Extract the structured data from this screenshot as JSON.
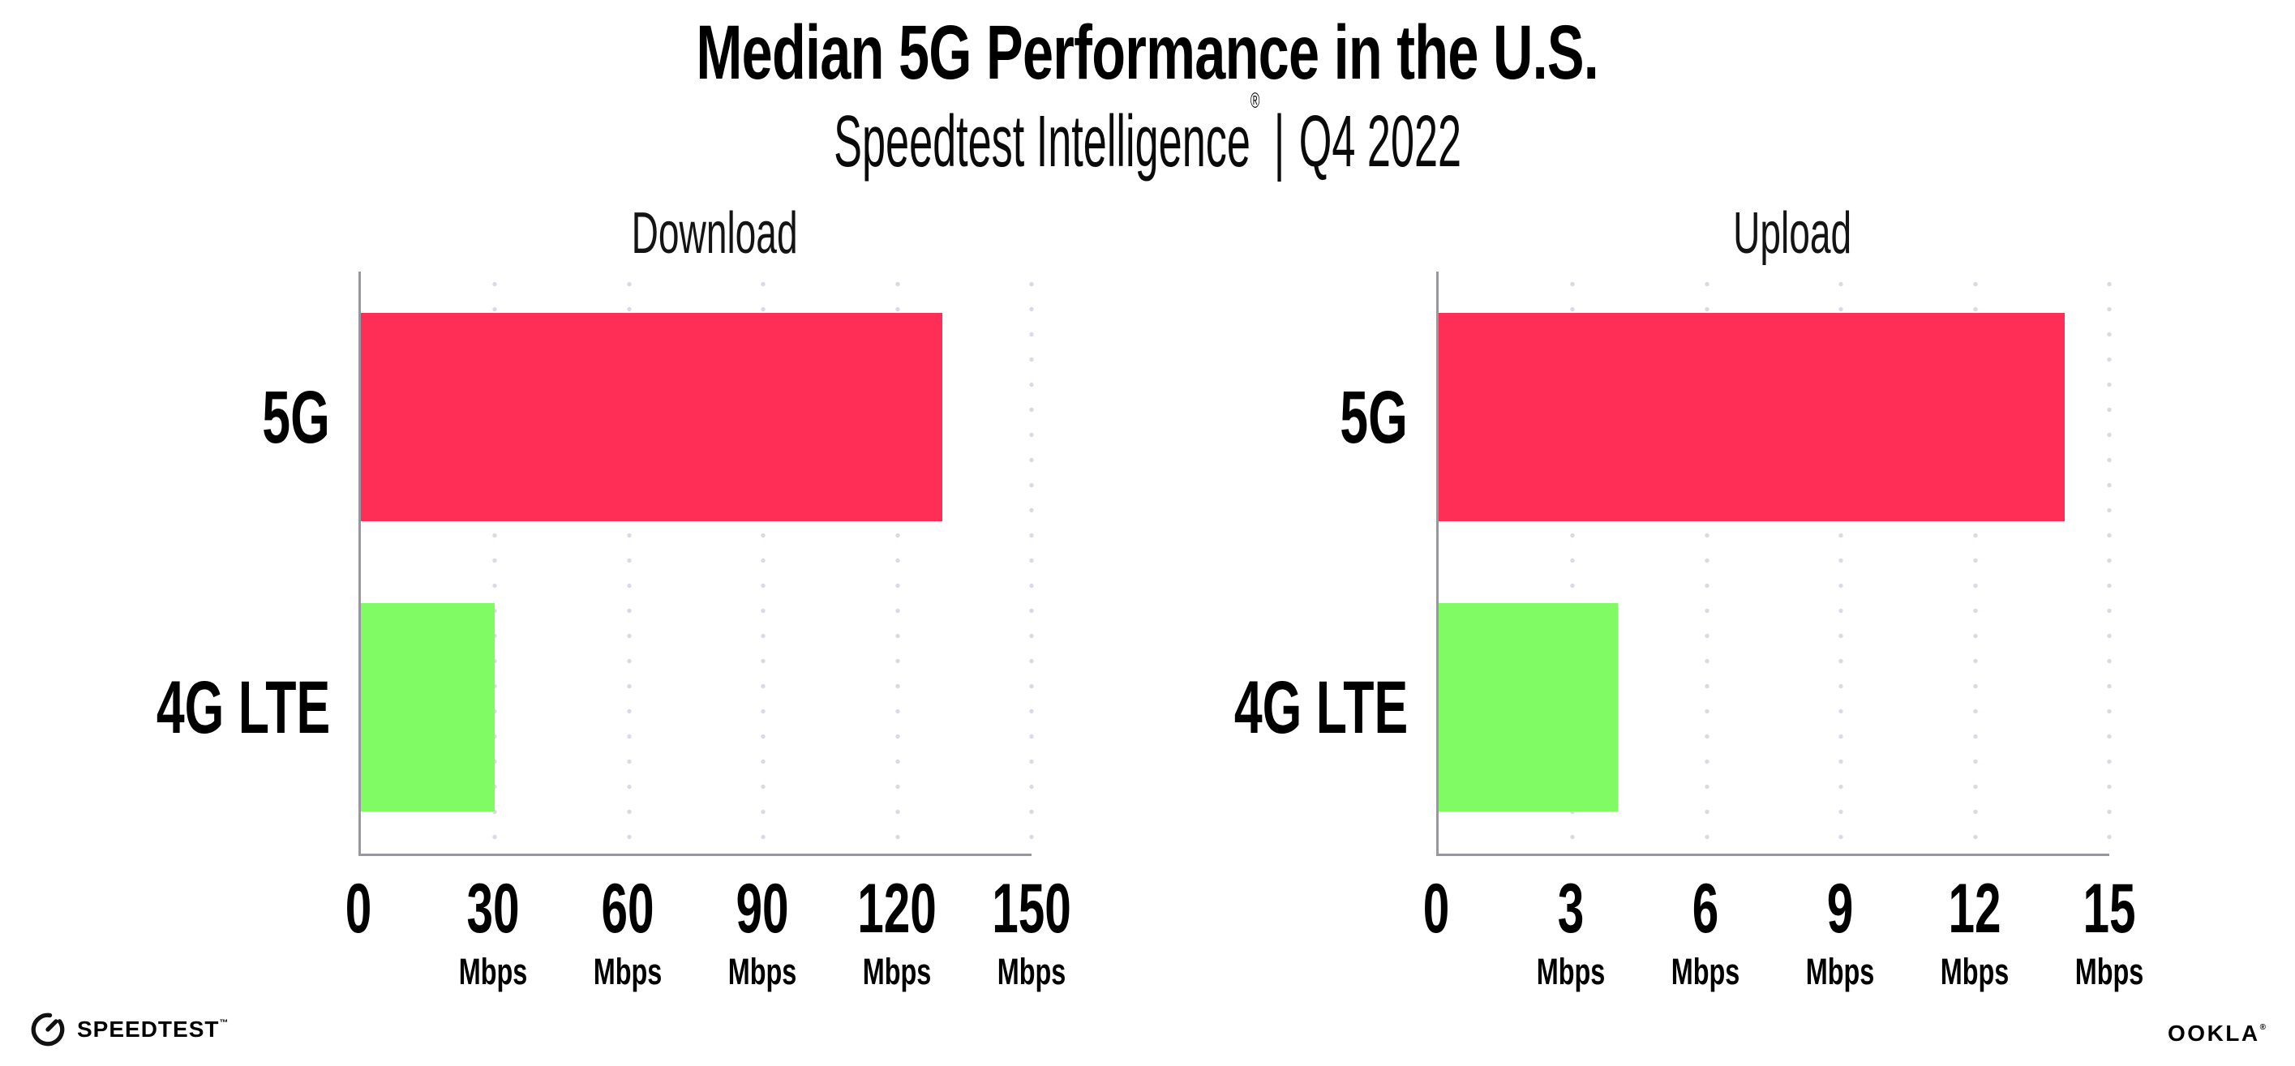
{
  "header": {
    "title": "Median 5G Performance in the U.S.",
    "subtitle_brand": "Speedtest Intelligence",
    "subtitle_reg": "®",
    "subtitle_divider": "|",
    "subtitle_period": "Q4 2022"
  },
  "chart_data": [
    {
      "type": "bar",
      "orientation": "horizontal",
      "title": "Download",
      "categories": [
        "5G",
        "4G LTE"
      ],
      "values": [
        130,
        30
      ],
      "unit": "Mbps",
      "xlim": [
        0,
        150
      ],
      "ticks": [
        "0",
        "30",
        "60",
        "90",
        "120",
        "150"
      ],
      "bar_colors": [
        "#ff2e56",
        "#80fb63"
      ],
      "grid": "dotted vertical gridlines at each tick",
      "legend_position": "none"
    },
    {
      "type": "bar",
      "orientation": "horizontal",
      "title": "Upload",
      "categories": [
        "5G",
        "4G LTE"
      ],
      "values": [
        14,
        4
      ],
      "unit": "Mbps",
      "xlim": [
        0,
        15
      ],
      "ticks": [
        "0",
        "3",
        "6",
        "9",
        "12",
        "15"
      ],
      "bar_colors": [
        "#ff2e56",
        "#80fb63"
      ],
      "grid": "dotted vertical gridlines at each tick",
      "legend_position": "none"
    }
  ],
  "footer": {
    "speedtest_wordmark": "SPEEDTEST",
    "speedtest_mark": "™",
    "ookla_wordmark": "OOKLA",
    "ookla_mark": "®"
  },
  "colors": {
    "bar_5g": "#ff2e56",
    "bar_4g_lte": "#80fb63",
    "gridline": "#d9dae3",
    "axis": "#97979f",
    "text": "#000000",
    "background": "#ffffff"
  }
}
